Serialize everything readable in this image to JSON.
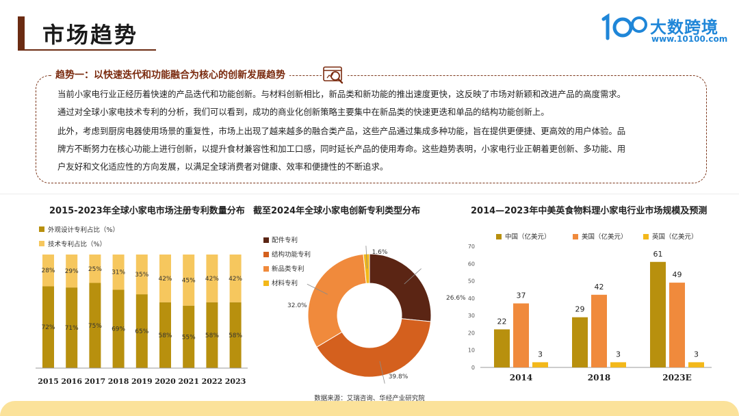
{
  "header": {
    "title": "市场趋势",
    "logo_text": "大数跨境",
    "logo_url": "www.10100.com"
  },
  "trend": {
    "title": "趋势一：以快速迭代和功能融合为核心的创新发展趋势",
    "p1_line1": "当前小家电行业正经历着快速的产品迭代和功能创新。与材料创新相比，新品类和新功能的推出速度更快，这反映了市场对新颖和改进产品的高度需求。",
    "p1_line2": "通过对全球小家电技术专利的分析，我们可以看到，成功的商业化创新策略主要集中在新品类的快速更迭和单品的结构功能创新上。",
    "p2_line1": "此外，考虑到厨房电器使用场景的重复性，市场上出现了越来越多的融合类产品，这些产品通过集成多种功能，旨在提供更便捷、更高效的用户体验。品",
    "p2_line2": "牌方不断努力在核心功能上进行创新，以提升食材兼容性和加工口感，同时延长产品的使用寿命。这些趋势表明，小家电行业正朝着更创新、多功能、用",
    "p2_line3": "户友好和文化适应性的方向发展，以满足全球消费者对健康、效率和便捷性的不断追求。"
  },
  "source": "数据来源：艾瑞咨询、华经产业研究院",
  "colors": {
    "dark_brown": "#6b2b12",
    "olive": "#b8900e",
    "light_yellow": "#f6c75e",
    "orange": "#f08a3c",
    "burnt": "#d4601e",
    "yellow": "#f3b81a",
    "maroon": "#5b2514"
  },
  "chart_data": [
    {
      "type": "bar",
      "stacked": true,
      "title": "2015-2023年全球小家电市场注册专利数量分布",
      "categories": [
        "2015",
        "2016",
        "2017",
        "2018",
        "2019",
        "2020",
        "2021",
        "2022",
        "2023"
      ],
      "series": [
        {
          "name": "外观设计专利占比（%）",
          "values": [
            72,
            71,
            75,
            69,
            65,
            58,
            55,
            58,
            58
          ],
          "labels": [
            "72%",
            "71%",
            "75%",
            "69%",
            "65%",
            "58%",
            "55%",
            "58%",
            "58%"
          ]
        },
        {
          "name": "技术专利占比（%）",
          "values": [
            28,
            29,
            25,
            31,
            35,
            42,
            45,
            42,
            42
          ],
          "labels": [
            "28%",
            "29%",
            "25%",
            "31%",
            "35%",
            "42%",
            "45%",
            "42%",
            "42%"
          ]
        }
      ],
      "ylim": [
        0,
        100
      ],
      "legend": "top-left"
    },
    {
      "type": "pie",
      "donut": true,
      "title": "截至2024年全球小家电创新专利类型分布",
      "slices": [
        {
          "name": "配件专利",
          "value": 26.6,
          "label": "26.6%"
        },
        {
          "name": "结构功能专利",
          "value": 39.8,
          "label": "39.8%"
        },
        {
          "name": "新品类专利",
          "value": 32.0,
          "label": "32.0%"
        },
        {
          "name": "材料专利",
          "value": 1.6,
          "label": "1.6%"
        }
      ],
      "legend": "left"
    },
    {
      "type": "bar",
      "title": "2014—2023年中美英食物料理小家电行业市场规模及预测",
      "categories": [
        "2014",
        "2018",
        "2023E"
      ],
      "series": [
        {
          "name": "中国（亿美元）",
          "values": [
            22,
            29,
            61
          ]
        },
        {
          "name": "美国（亿美元）",
          "values": [
            37,
            42,
            49
          ]
        },
        {
          "name": "英国（亿美元）",
          "values": [
            3,
            3,
            3
          ]
        }
      ],
      "ylim": [
        0,
        70
      ],
      "yticks": [
        "0",
        "10",
        "20",
        "30",
        "40",
        "50",
        "60",
        "70"
      ],
      "grid": false,
      "legend": "top"
    }
  ]
}
